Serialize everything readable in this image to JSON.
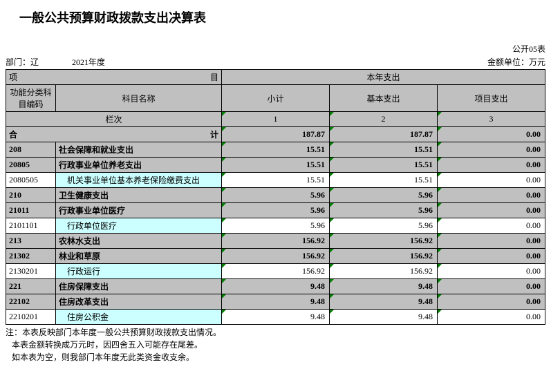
{
  "title": "一般公共预算财政拨款支出决算表",
  "meta": {
    "dept_label": "部门：辽",
    "year": "2021年度",
    "form_no": "公开05表",
    "unit": "金额单位：万元"
  },
  "header": {
    "proj_left": "项",
    "proj_right": "目",
    "spend_group": "本年支出",
    "code": "功能分类科目编码",
    "name": "科目名称",
    "subtotal": "小计",
    "basic": "基本支出",
    "project": "项目支出",
    "lanci": "栏次",
    "col1": "1",
    "col2": "2",
    "col3": "3"
  },
  "total_row": {
    "left": "合",
    "right": "计",
    "v1": "187.87",
    "v2": "187.87",
    "v3": "0.00"
  },
  "rows": [
    {
      "style": "bold",
      "code": "208",
      "name": "社会保障和就业支出",
      "v1": "15.51",
      "v2": "15.51",
      "v3": "0.00"
    },
    {
      "style": "bold",
      "code": "20805",
      "name": "行政事业单位养老支出",
      "v1": "15.51",
      "v2": "15.51",
      "v3": "0.00"
    },
    {
      "style": "hl",
      "code": "2080505",
      "name": "机关事业单位基本养老保险缴费支出",
      "indent": true,
      "v1": "15.51",
      "v2": "15.51",
      "v3": "0.00"
    },
    {
      "style": "bold",
      "code": "210",
      "name": "卫生健康支出",
      "v1": "5.96",
      "v2": "5.96",
      "v3": "0.00"
    },
    {
      "style": "bold",
      "code": "21011",
      "name": "行政事业单位医疗",
      "v1": "5.96",
      "v2": "5.96",
      "v3": "0.00"
    },
    {
      "style": "hl",
      "code": "2101101",
      "name": "行政单位医疗",
      "indent": true,
      "v1": "5.96",
      "v2": "5.96",
      "v3": "0.00"
    },
    {
      "style": "bold",
      "code": "213",
      "name": "农林水支出",
      "v1": "156.92",
      "v2": "156.92",
      "v3": "0.00"
    },
    {
      "style": "bold",
      "code": "21302",
      "name": "林业和草原",
      "v1": "156.92",
      "v2": "156.92",
      "v3": "0.00"
    },
    {
      "style": "hl",
      "code": "2130201",
      "name": "行政运行",
      "indent": true,
      "v1": "156.92",
      "v2": "156.92",
      "v3": "0.00"
    },
    {
      "style": "bold",
      "code": "221",
      "name": "住房保障支出",
      "v1": "9.48",
      "v2": "9.48",
      "v3": "0.00"
    },
    {
      "style": "bold",
      "code": "22102",
      "name": "住房改革支出",
      "v1": "9.48",
      "v2": "9.48",
      "v3": "0.00"
    },
    {
      "style": "hl",
      "code": "2210201",
      "name": "住房公积金",
      "indent": true,
      "v1": "9.48",
      "v2": "9.48",
      "v3": "0.00"
    }
  ],
  "notes": {
    "prefix": "注：",
    "l1": "本表反映部门本年度一般公共预算财政拨款支出情况。",
    "l2": "本表金额转换成万元时，因四舍五入可能存在尾差。",
    "l3": "如本表为空，则我部门本年度无此类资金收支余。"
  },
  "colors": {
    "header_bg": "#c0c0c0",
    "highlight_bg": "#ccffff",
    "triangle": "#008000"
  }
}
